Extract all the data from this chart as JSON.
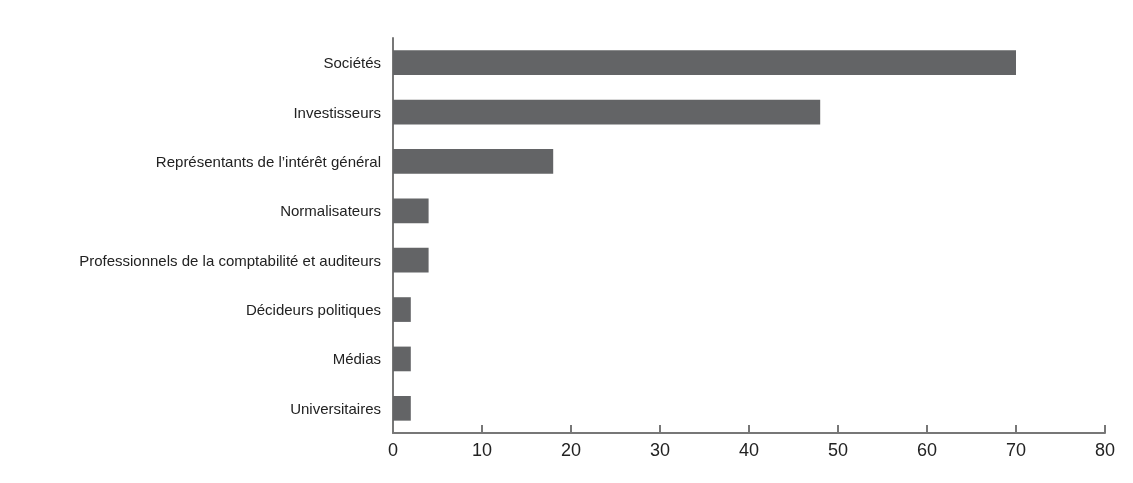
{
  "chart_data": {
    "type": "bar",
    "orientation": "horizontal",
    "categories": [
      "Sociétés",
      "Investisseurs",
      "Représentants de l’intérêt général",
      "Normalisateurs",
      "Professionnels de la comptabilité et auditeurs",
      "Décideurs politiques",
      "Médias",
      "Universitaires"
    ],
    "values": [
      70,
      48,
      18,
      4,
      4,
      2,
      2,
      2
    ],
    "color": "#636466",
    "xlim": [
      0,
      80
    ],
    "xticks": [
      0,
      10,
      20,
      30,
      40,
      50,
      60,
      70,
      80
    ],
    "grid": false
  }
}
